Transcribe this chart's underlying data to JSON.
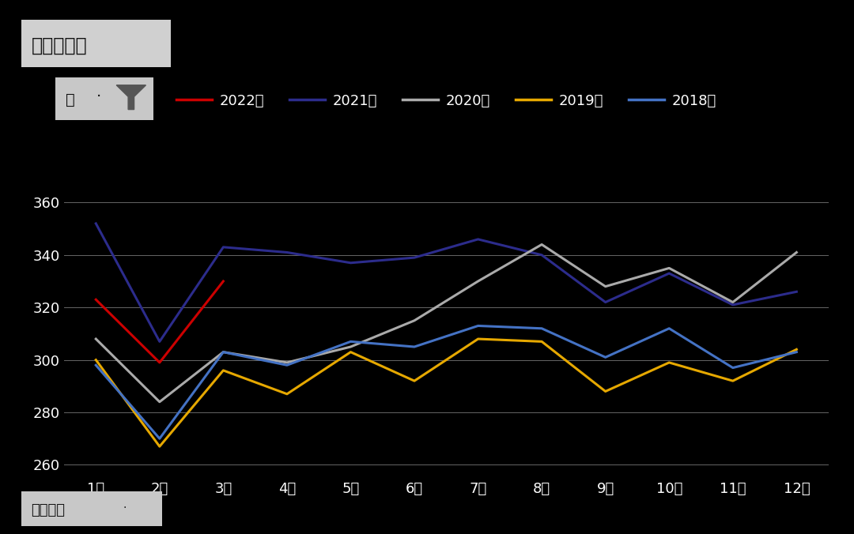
{
  "title": "表观消费量",
  "subtitle_label": "年",
  "filter_dot": "·",
  "bottom_label": "指标名称",
  "bottom_dot": "·",
  "x_labels": [
    "1月",
    "2月",
    "3月",
    "4月",
    "5月",
    "6月",
    "7月",
    "8月",
    "9月",
    "10月",
    "11月",
    "12月"
  ],
  "ylim": [
    255,
    368
  ],
  "yticks": [
    260,
    280,
    300,
    320,
    340,
    360
  ],
  "series": [
    {
      "label": "2022年",
      "color": "#cc0000",
      "linewidth": 2.2,
      "data": [
        323,
        299,
        330,
        null,
        null,
        null,
        null,
        null,
        null,
        null,
        null,
        null
      ]
    },
    {
      "label": "2021年",
      "color": "#2c2c8c",
      "linewidth": 2.2,
      "data": [
        352,
        307,
        343,
        341,
        337,
        339,
        346,
        340,
        322,
        333,
        321,
        326
      ]
    },
    {
      "label": "2020年",
      "color": "#aaaaaa",
      "linewidth": 2.2,
      "data": [
        308,
        284,
        303,
        299,
        305,
        315,
        330,
        344,
        328,
        335,
        322,
        341
      ]
    },
    {
      "label": "2019年",
      "color": "#e6a800",
      "linewidth": 2.2,
      "data": [
        300,
        267,
        296,
        287,
        303,
        292,
        308,
        307,
        288,
        299,
        292,
        304
      ]
    },
    {
      "label": "2018年",
      "color": "#4472c4",
      "linewidth": 2.2,
      "data": [
        298,
        270,
        303,
        298,
        307,
        305,
        313,
        312,
        301,
        312,
        297,
        303
      ]
    }
  ],
  "background_color": "#000000",
  "plot_bg_color": "#000000",
  "text_color": "#ffffff",
  "grid_color": "#ffffff",
  "title_box_color": "#d0d0d0",
  "title_text_color": "#111111",
  "year_box_color": "#c8c8c8",
  "year_text_color": "#111111",
  "filter_icon_color": "#555555",
  "bottom_box_color": "#c8c8c8",
  "bottom_text_color": "#111111",
  "title_fontsize": 17,
  "tick_fontsize": 13,
  "legend_fontsize": 13
}
